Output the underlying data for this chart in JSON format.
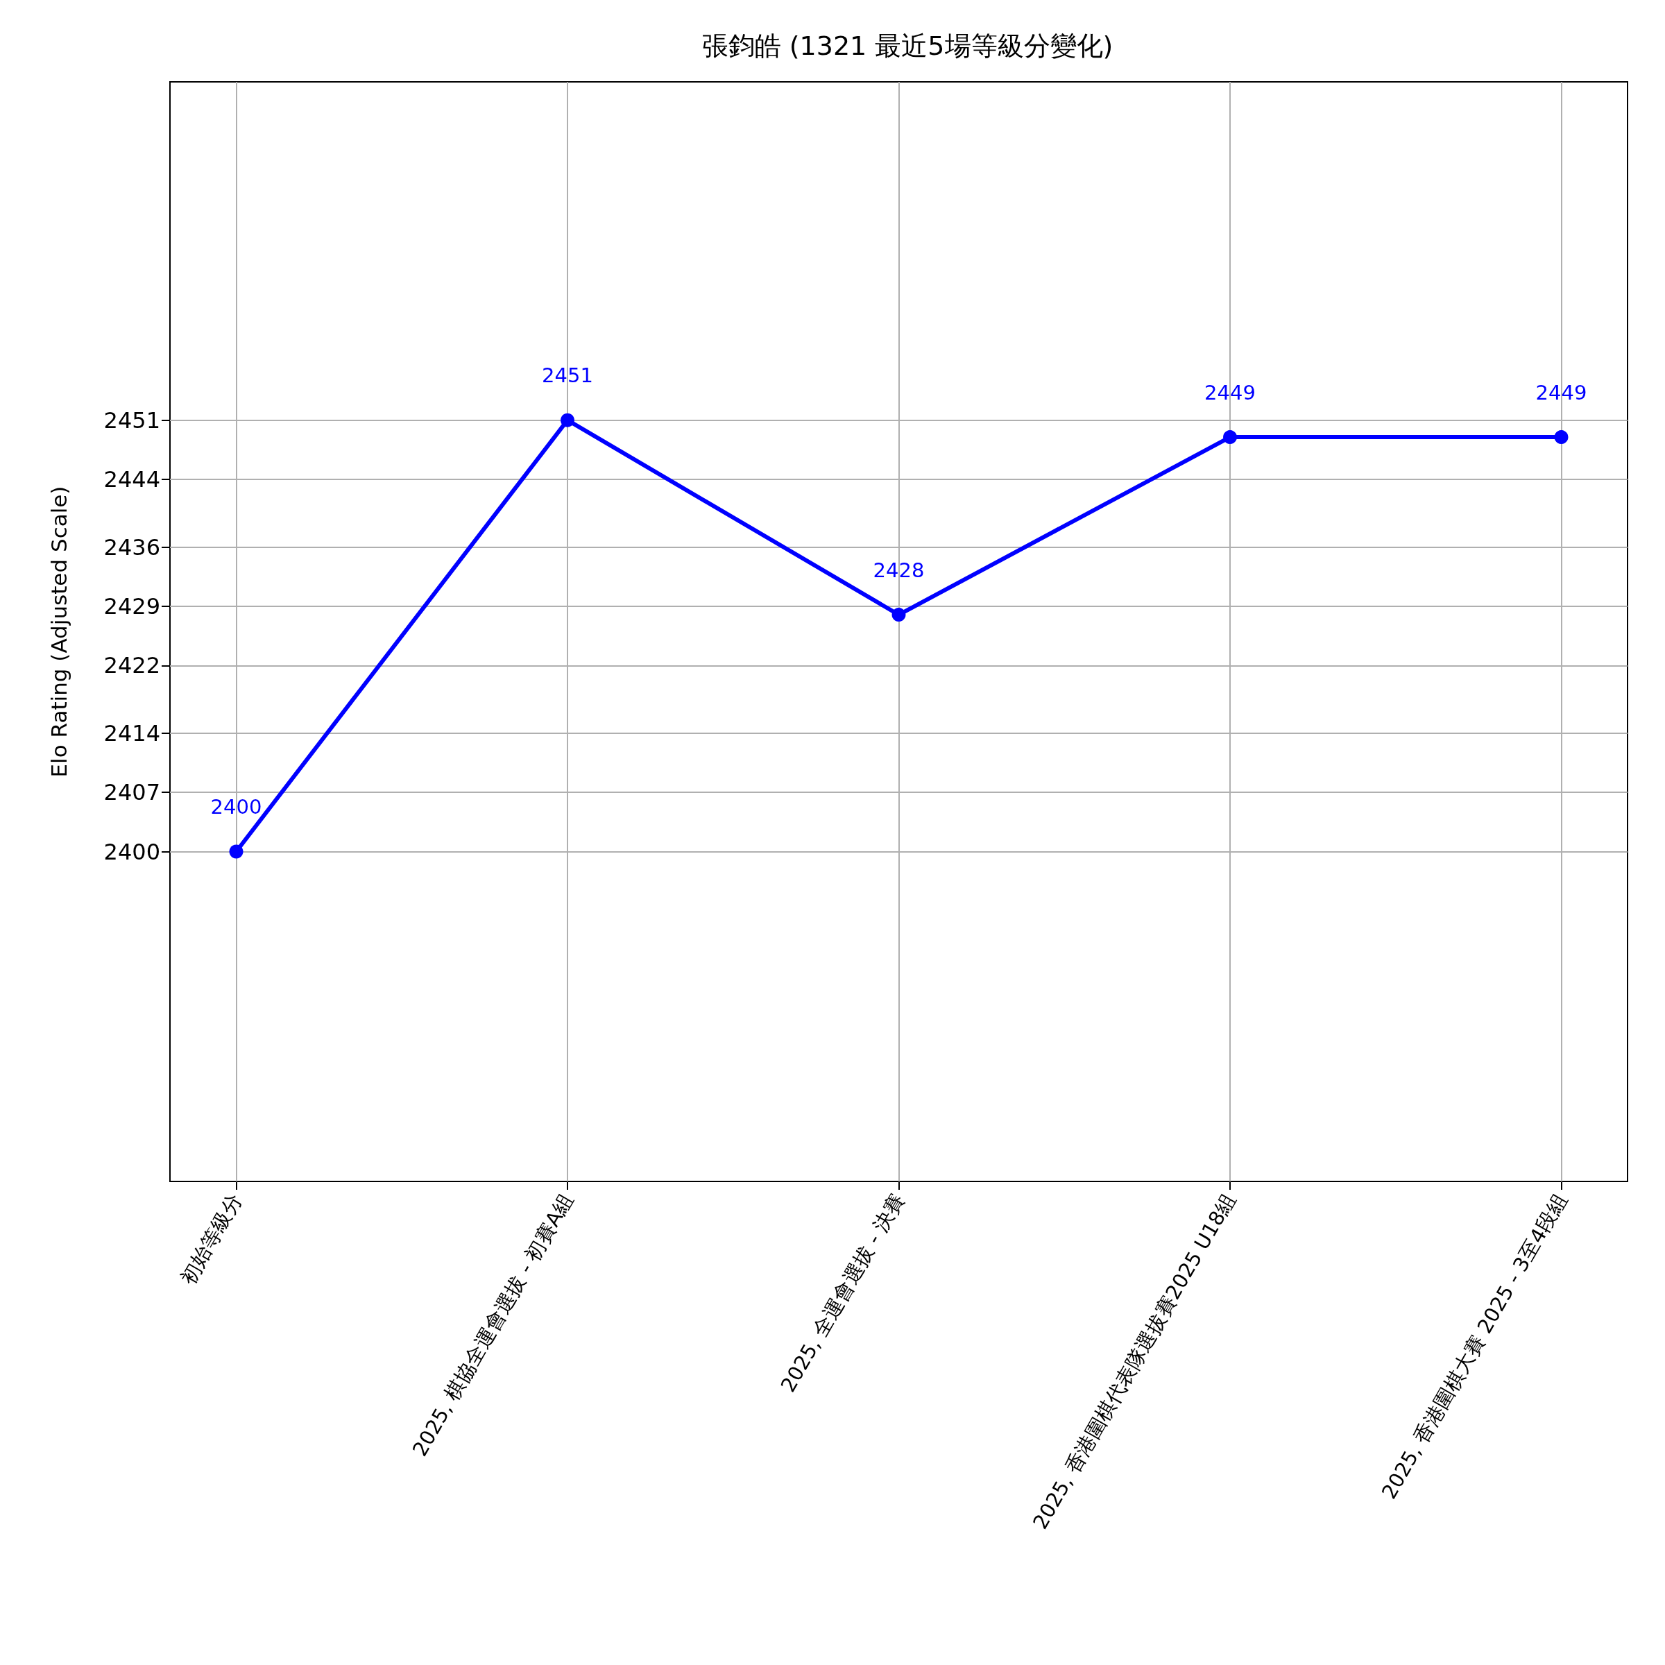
{
  "chart_data": {
    "type": "line",
    "title": "張鈞皓 (1321 最近5場等級分變化)",
    "ylabel": "Elo Rating (Adjusted Scale)",
    "categories": [
      "初始等級分",
      "2025, 棋協全運會選拔 - 初賽A組",
      "2025, 全運會選拔 - 決賽",
      "2025, 香港圍棋代表隊選拔賽2025 U18組",
      "2025, 香港圍棋大賽 2025 - 3至4段組"
    ],
    "series": [
      {
        "color": "#0000ff",
        "values": [
          2400,
          2451,
          2428,
          2449,
          2449
        ]
      }
    ],
    "ylim": [
      2361,
      2491
    ],
    "yticks": [
      2400,
      2407,
      2414,
      2422,
      2429,
      2436,
      2444,
      2451
    ],
    "grid": true,
    "marker": "circle",
    "line_style": "solid",
    "data_labels": true
  }
}
